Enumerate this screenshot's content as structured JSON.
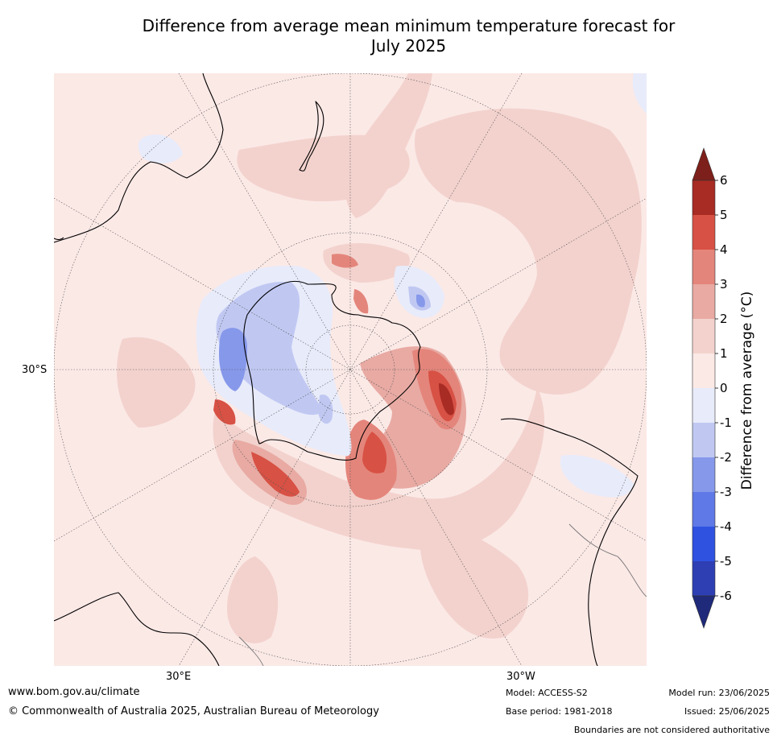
{
  "title": "Difference from average mean minimum temperature forecast for\nJuly 2025",
  "map": {
    "projection": "south polar stereographic",
    "labels": {
      "lat_30s": "30°S",
      "lon_30e": "30°E",
      "lon_30w": "30°W"
    },
    "colors": {
      "background_0_to_1": "#fbe9e6",
      "warm_1_to_2": "#f3d2cd",
      "warm_2_to_3": "#e8aaa3",
      "warm_3_to_4": "#e4857b",
      "warm_4_to_5": "#d75144",
      "warm_5_to_6": "#a82b24",
      "cool_0_to_-1": "#e8ebfa",
      "cool_-1_to_-2": "#c0c8f2",
      "cool_-2_to_-3": "#8698ea"
    }
  },
  "colorbar": {
    "title": "Difference from average (°C)",
    "ticks": [
      "6",
      "5",
      "4",
      "3",
      "2",
      "1",
      "0",
      "-1",
      "-2",
      "-3",
      "-4",
      "-5",
      "-6"
    ],
    "bands": [
      {
        "from": 6,
        "to": 5,
        "color": "#a82b24"
      },
      {
        "from": 5,
        "to": 4,
        "color": "#d75144"
      },
      {
        "from": 4,
        "to": 3,
        "color": "#e4857b"
      },
      {
        "from": 3,
        "to": 2,
        "color": "#e8aaa3"
      },
      {
        "from": 2,
        "to": 1,
        "color": "#f3d2cd"
      },
      {
        "from": 1,
        "to": 0,
        "color": "#fbe9e6"
      },
      {
        "from": 0,
        "to": -1,
        "color": "#e8ebfa"
      },
      {
        "from": -1,
        "to": -2,
        "color": "#c0c8f2"
      },
      {
        "from": -2,
        "to": -3,
        "color": "#8698ea"
      },
      {
        "from": -3,
        "to": -4,
        "color": "#5f79e6"
      },
      {
        "from": -4,
        "to": -5,
        "color": "#2f52e0"
      },
      {
        "from": -5,
        "to": -6,
        "color": "#2e3fb3"
      }
    ],
    "over_color": "#7d1f1a",
    "under_color": "#1f2a7a"
  },
  "footer": {
    "website": "www.bom.gov.au/climate",
    "copyright": "© Commonwealth of Australia 2025, Australian Bureau of Meteorology",
    "model": "Model: ACCESS-S2",
    "base_period": "Base period: 1981-2018",
    "model_run": "Model run: 23/06/2025",
    "issued": "Issued: 25/06/2025",
    "disclaimer": "Boundaries are not considered authoritative"
  }
}
